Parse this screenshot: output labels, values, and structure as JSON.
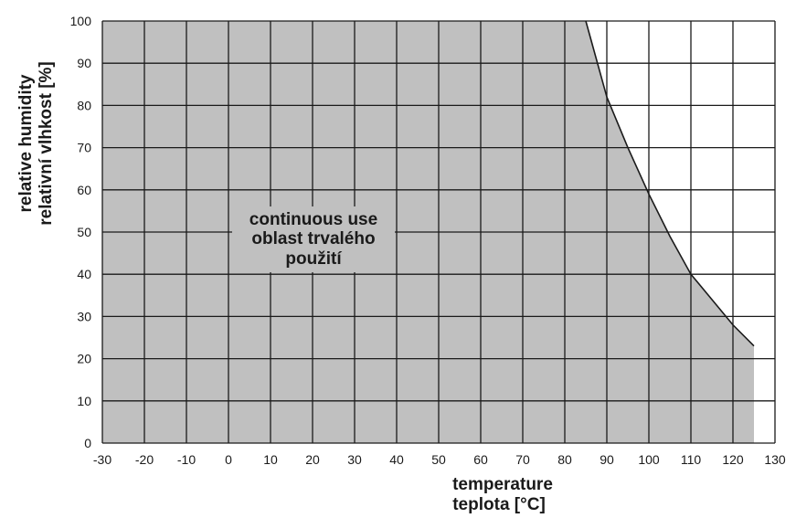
{
  "chart_data": {
    "type": "area",
    "x_ticks": [
      "-30",
      "-20",
      "-10",
      "0",
      "10",
      "20",
      "30",
      "40",
      "50",
      "60",
      "70",
      "80",
      "90",
      "100",
      "110",
      "120",
      "130"
    ],
    "y_ticks": [
      "0",
      "10",
      "20",
      "30",
      "40",
      "50",
      "60",
      "70",
      "80",
      "90",
      "100"
    ],
    "xlim": [
      -30,
      130
    ],
    "ylim": [
      0,
      100
    ],
    "xlabel_lines": [
      "temperature",
      "teplota [°C]"
    ],
    "ylabel_lines": [
      "relative humidity",
      "relativní vlhkost [%]"
    ],
    "annotation_lines": [
      "continuous use",
      "oblast trvalého",
      "použití"
    ],
    "series": [
      {
        "x": [
          -30,
          85,
          90,
          95,
          100,
          105,
          110,
          115,
          120,
          125,
          125
        ],
        "y": [
          100,
          100,
          82,
          70,
          59,
          49,
          40,
          34,
          28,
          23,
          0
        ]
      }
    ],
    "grid": true,
    "colors": {
      "fill": "#c0c0c0",
      "line": "#1a1a1a",
      "grid": "#1a1a1a"
    }
  }
}
